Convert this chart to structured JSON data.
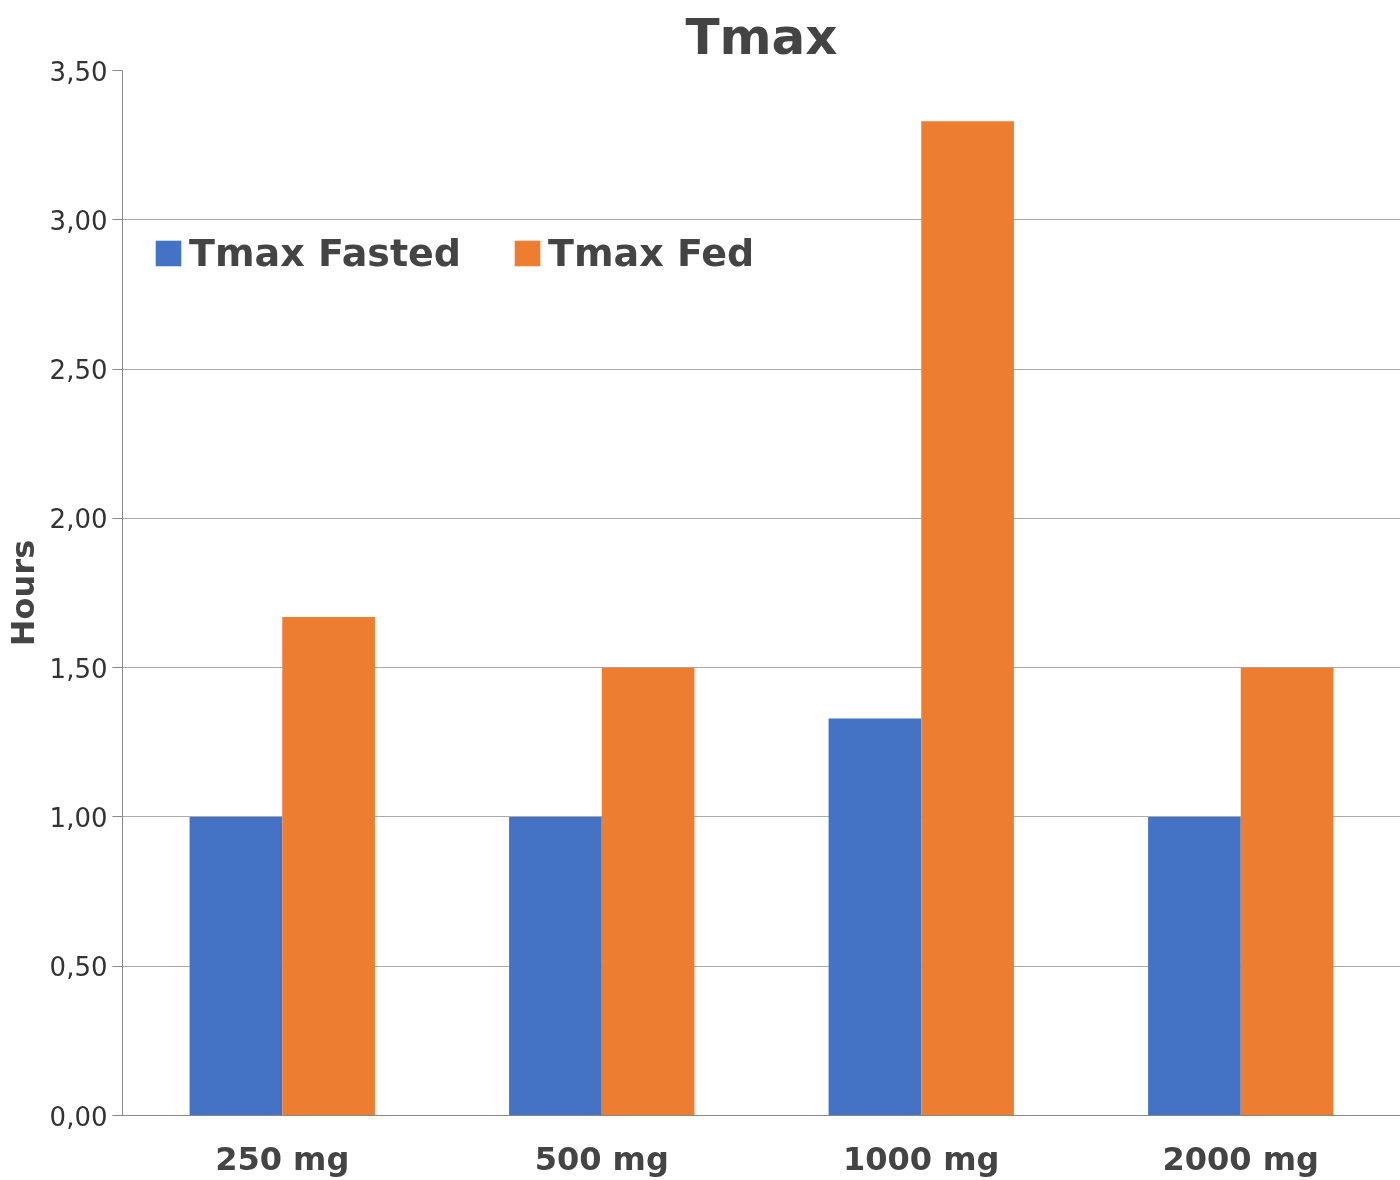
{
  "chart_data": {
    "type": "bar",
    "title": "Tmax",
    "ylabel": "Hours",
    "categories": [
      "250 mg",
      "500 mg",
      "1000 mg",
      "2000 mg"
    ],
    "series": [
      {
        "name": "Tmax Fasted",
        "color": "#4472c4",
        "values": [
          1.0,
          1.0,
          1.33,
          1.0
        ]
      },
      {
        "name": "Tmax Fed",
        "color": "#ed7d31",
        "values": [
          1.67,
          1.5,
          3.33,
          1.5
        ]
      }
    ],
    "ylim": [
      0,
      3.5
    ],
    "yticks": [
      {
        "value": 0,
        "label": "0,00"
      },
      {
        "value": 0.5,
        "label": "0,50"
      },
      {
        "value": 1,
        "label": "1,00"
      },
      {
        "value": 1.5,
        "label": "1,50"
      },
      {
        "value": 2,
        "label": "2,00"
      },
      {
        "value": 2.5,
        "label": "2,50"
      },
      {
        "value": 3,
        "label": "3,00"
      },
      {
        "value": 3.5,
        "label": "3,50"
      }
    ],
    "grid": "y",
    "legend": "top left"
  }
}
